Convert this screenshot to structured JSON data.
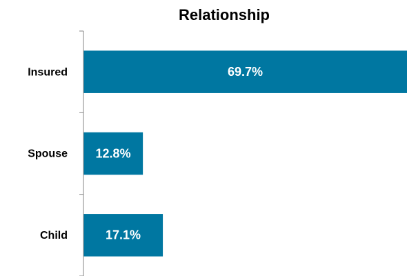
{
  "chart_data": {
    "type": "bar",
    "orientation": "horizontal",
    "title": "Relationship",
    "categories": [
      "Insured",
      "Spouse",
      "Child"
    ],
    "values": [
      69.7,
      12.8,
      17.1
    ],
    "value_labels": [
      "69.7%",
      "12.8%",
      "17.1%"
    ],
    "color": "#0077a1"
  }
}
